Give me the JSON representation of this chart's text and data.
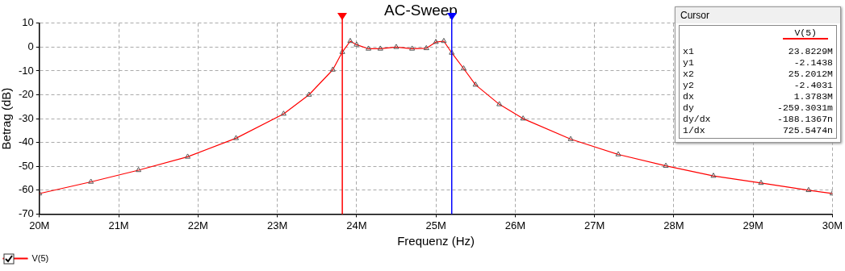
{
  "chart_data": {
    "type": "line",
    "title": "AC-Sweep",
    "xlabel": "Frequenz (Hz)",
    "ylabel": "Betrag (dB)",
    "x": [
      20000000,
      20650000,
      21250000,
      21870000,
      22480000,
      23080000,
      23400000,
      23700000,
      23820000,
      23920000,
      24000000,
      24150000,
      24300000,
      24500000,
      24700000,
      24880000,
      25000000,
      25100000,
      25200000,
      25350000,
      25500000,
      25800000,
      26100000,
      26700000,
      27300000,
      27900000,
      28500000,
      29100000,
      29700000,
      30000000
    ],
    "series": [
      {
        "name": "V(5)",
        "color": "#ff0000",
        "values": [
          -61.4,
          -56.5,
          -51.6,
          -46,
          -38.2,
          -28,
          -20,
          -9.5,
          -2.1,
          2.5,
          1,
          -0.7,
          -0.7,
          0,
          -0.7,
          -0.5,
          2.1,
          2.5,
          -2.4,
          -9,
          -15.8,
          -24,
          -30,
          -38.6,
          -45,
          -49.8,
          -54,
          -57,
          -60,
          -61.4
        ]
      }
    ],
    "xlim": [
      20000000,
      30000000
    ],
    "xticks": [
      {
        "value": 20000000,
        "label": "20M"
      },
      {
        "value": 21000000,
        "label": "21M"
      },
      {
        "value": 22000000,
        "label": "22M"
      },
      {
        "value": 23000000,
        "label": "23M"
      },
      {
        "value": 24000000,
        "label": "24M"
      },
      {
        "value": 25000000,
        "label": "25M"
      },
      {
        "value": 26000000,
        "label": "26M"
      },
      {
        "value": 27000000,
        "label": "27M"
      },
      {
        "value": 28000000,
        "label": "28M"
      },
      {
        "value": 29000000,
        "label": "29M"
      },
      {
        "value": 30000000,
        "label": "30M"
      }
    ],
    "ylim": [
      -70,
      10
    ],
    "yticks": [
      -70,
      -60,
      -50,
      -40,
      -30,
      -20,
      -10,
      0,
      10
    ],
    "ref_lines": [
      {
        "axis": "x",
        "value": 23820000,
        "color": "#ff0000"
      },
      {
        "axis": "x",
        "value": 25200000,
        "color": "#0000ff"
      }
    ],
    "annotations": [
      "Cursor",
      "V(5)",
      "x1",
      "23.8229M",
      "y1",
      "-2.1438",
      "x2",
      "25.2012M",
      "y2",
      "-2.4031",
      "dx",
      "1.3783M",
      "dy",
      "-259.3031m",
      "dy/dx",
      "-188.1367n",
      "1/dx",
      "725.5474n"
    ],
    "grid": true,
    "legend": "bottom left",
    "marker": "triangle",
    "line_style": "solid"
  }
}
